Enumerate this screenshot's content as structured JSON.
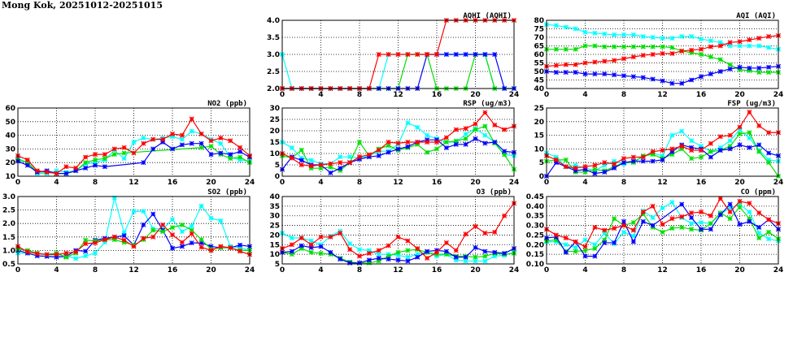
{
  "title": "Mong Kok, 20251012-20251015",
  "series_colors": {
    "red": "#ff0000",
    "green": "#00e000",
    "blue": "#0000ff",
    "cyan": "#00ffff"
  },
  "chart_data": [
    {
      "id": "aqhi",
      "type": "line",
      "title": "AQHI (AQHI)",
      "ylim": [
        2,
        4
      ],
      "yticks": [
        "2.0",
        "2.5",
        "3.0",
        "3.5",
        "4.0"
      ],
      "xlim": [
        0,
        24
      ],
      "xticks": [
        "0",
        "4",
        "8",
        "12",
        "16",
        "20",
        "24"
      ],
      "grid": true,
      "series": [
        {
          "name": "cyan",
          "values": [
            3,
            2,
            2,
            2,
            2,
            2,
            2,
            2,
            2,
            2,
            2,
            3,
            3,
            3,
            3,
            3,
            3,
            3,
            3,
            3,
            3,
            3,
            2,
            2,
            2
          ]
        },
        {
          "name": "green",
          "values": [
            2,
            2,
            2,
            2,
            2,
            2,
            2,
            2,
            2,
            2,
            2,
            2,
            2,
            3,
            3,
            3,
            2,
            2,
            2,
            2,
            3,
            3,
            2,
            null,
            null
          ]
        },
        {
          "name": "blue",
          "values": [
            2,
            2,
            2,
            2,
            2,
            2,
            2,
            2,
            2,
            2,
            2,
            2,
            2,
            2,
            2,
            3,
            3,
            3,
            3,
            3,
            3,
            3,
            3,
            2,
            2
          ]
        },
        {
          "name": "red",
          "values": [
            2,
            2,
            2,
            2,
            2,
            2,
            2,
            2,
            2,
            2,
            3,
            3,
            3,
            3,
            3,
            3,
            3,
            4,
            4,
            4,
            4,
            4,
            4,
            4,
            4
          ]
        }
      ]
    },
    {
      "id": "aqi",
      "type": "line",
      "title": "AQI (AQI)",
      "ylim": [
        40,
        80
      ],
      "yticks": [
        "40",
        "45",
        "50",
        "55",
        "60",
        "65",
        "70",
        "75",
        "80"
      ],
      "xlim": [
        0,
        24
      ],
      "xticks": [
        "0",
        "4",
        "8",
        "12",
        "16",
        "20",
        "24"
      ],
      "grid": true,
      "series": [
        {
          "name": "cyan",
          "values": [
            77.5,
            77,
            76,
            75,
            73,
            72.5,
            72,
            71.5,
            71.5,
            71.5,
            70.5,
            70,
            69.5,
            69.5,
            70.5,
            70.5,
            69,
            68,
            67,
            65,
            65,
            65,
            65,
            64,
            63
          ]
        },
        {
          "name": "green",
          "values": [
            63,
            63,
            63,
            63,
            65,
            65,
            64.5,
            64.5,
            64.5,
            64.5,
            64.5,
            64.5,
            64.5,
            64,
            62,
            61,
            60,
            58.5,
            57,
            54,
            51,
            50.5,
            49.5,
            49.5,
            49.5
          ]
        },
        {
          "name": "red",
          "values": [
            53,
            53.5,
            54,
            54,
            55,
            55.5,
            56,
            56.5,
            57.5,
            58.5,
            59.5,
            60,
            60.5,
            60.5,
            62,
            62.5,
            63,
            64.5,
            65,
            67,
            67.5,
            68.5,
            69.5,
            70.5,
            71
          ]
        },
        {
          "name": "blue",
          "values": [
            50,
            49.5,
            49.5,
            49.5,
            48.5,
            48.5,
            48.5,
            48,
            47.5,
            47,
            46.5,
            45.5,
            44.5,
            43,
            43,
            45,
            47,
            48.5,
            50,
            51.5,
            52.5,
            52,
            52,
            52.5,
            53
          ]
        }
      ]
    },
    {
      "id": "no2",
      "type": "line",
      "title": "NO2 (ppb)",
      "ylim": [
        10,
        60
      ],
      "yticks": [
        "10",
        "20",
        "30",
        "40",
        "50",
        "60"
      ],
      "xlim": [
        0,
        24
      ],
      "xticks": [
        "0",
        "4",
        "8",
        "12",
        "16",
        "20",
        "24"
      ],
      "grid": true,
      "series": [
        {
          "name": "cyan",
          "values": [
            23,
            20,
            12,
            12,
            14,
            13,
            14,
            19,
            20,
            22,
            29,
            23,
            35,
            38,
            37,
            38,
            39,
            37,
            43,
            41,
            37,
            34,
            24,
            22,
            21
          ]
        },
        {
          "name": "green",
          "values": [
            22,
            20,
            13,
            13,
            12,
            12,
            14,
            20,
            22,
            23,
            26,
            27,
            null,
            null,
            null,
            null,
            null,
            null,
            null,
            31,
            32,
            26,
            23,
            24,
            20
          ]
        },
        {
          "name": "blue",
          "values": [
            21,
            18,
            13,
            14,
            12,
            12,
            14,
            16,
            18,
            17,
            null,
            null,
            null,
            20,
            30,
            35,
            30,
            33,
            34,
            34,
            26,
            27,
            26,
            28,
            24
          ]
        },
        {
          "name": "red",
          "values": [
            25,
            22,
            14,
            13,
            12,
            17,
            16,
            24,
            26,
            26,
            30,
            31,
            27,
            34,
            37,
            37,
            41,
            40,
            52,
            41,
            36,
            38,
            36,
            31,
            25
          ]
        }
      ]
    },
    {
      "id": "rsp",
      "type": "line",
      "title": "RSP (ug/m3)",
      "ylim": [
        0,
        30
      ],
      "yticks": [
        "0",
        "5",
        "10",
        "15",
        "20",
        "25",
        "30"
      ],
      "xlim": [
        0,
        24
      ],
      "xticks": [
        "0",
        "4",
        "8",
        "12",
        "16",
        "20",
        "24"
      ],
      "grid": true,
      "series": [
        {
          "name": "cyan",
          "values": [
            15,
            12.5,
            8,
            7,
            5.5,
            5.5,
            8.5,
            8.5,
            8,
            9,
            11,
            11,
            14,
            23.5,
            21.5,
            18,
            16.5,
            15,
            15,
            18.5,
            21,
            18,
            15,
            9.5,
            9
          ]
        },
        {
          "name": "green",
          "values": [
            9,
            8,
            11.5,
            3.5,
            3.5,
            4,
            2.5,
            6,
            15,
            9,
            12,
            13.5,
            11.5,
            12.5,
            14,
            10.5,
            12,
            15,
            15.5,
            16.5,
            20.5,
            22,
            14.5,
            9.5,
            3
          ]
        },
        {
          "name": "blue",
          "values": [
            3,
            8.5,
            7,
            5,
            5,
            1.5,
            3.5,
            6,
            7.5,
            8.5,
            9,
            10.5,
            12,
            13,
            15,
            16,
            16,
            12.5,
            14,
            14,
            16.5,
            14.5,
            15,
            11,
            10.5
          ]
        },
        {
          "name": "red",
          "values": [
            10,
            8,
            5,
            4.5,
            5,
            5.5,
            6,
            6,
            8.5,
            9.5,
            11.5,
            15,
            14.5,
            15,
            15,
            15,
            15,
            17,
            20.5,
            21,
            23,
            28,
            22.5,
            20.5,
            22
          ]
        }
      ]
    },
    {
      "id": "fsp",
      "type": "line",
      "title": "FSP (ug/m3)",
      "ylim": [
        0,
        25
      ],
      "yticks": [
        "0",
        "5",
        "10",
        "15",
        "20",
        "25"
      ],
      "xlim": [
        0,
        24
      ],
      "xticks": [
        "0",
        "4",
        "8",
        "12",
        "16",
        "20",
        "24"
      ],
      "grid": true,
      "series": [
        {
          "name": "cyan",
          "values": [
            8.5,
            7,
            3.5,
            4,
            3,
            2,
            4,
            5.5,
            4.5,
            5.5,
            7,
            8.5,
            7.5,
            15,
            16.5,
            13,
            11,
            9,
            10.5,
            13,
            17,
            14,
            9.5,
            6,
            5.5
          ]
        },
        {
          "name": "green",
          "values": [
            5.5,
            6,
            6,
            1.5,
            1.5,
            2.5,
            2,
            3.5,
            5,
            5,
            7.5,
            8,
            6.5,
            8,
            10,
            6.5,
            7,
            9,
            9.5,
            11,
            15.5,
            16,
            9,
            5,
            0
          ]
        },
        {
          "name": "blue",
          "values": [
            0,
            5,
            3.5,
            2,
            2.5,
            1,
            1.5,
            3,
            5,
            5.5,
            5.5,
            5.5,
            6,
            9,
            11.5,
            10.5,
            10,
            7,
            9.5,
            10,
            11.5,
            10.5,
            11.5,
            8.5,
            7.5
          ]
        },
        {
          "name": "red",
          "values": [
            7.5,
            6,
            3.5,
            3,
            3.5,
            4,
            5,
            4.5,
            6.5,
            7,
            7,
            9,
            9.5,
            10,
            11,
            9.5,
            9.5,
            12,
            14.5,
            15,
            18,
            23.5,
            18.5,
            16,
            16
          ]
        }
      ]
    },
    {
      "id": "so2",
      "type": "line",
      "title": "SO2 (ppb)",
      "ylim": [
        0.5,
        3
      ],
      "yticks": [
        "0.5",
        "1.0",
        "1.5",
        "2.0",
        "2.5",
        "3.0"
      ],
      "xlim": [
        0,
        24
      ],
      "xticks": [
        "0",
        "4",
        "8",
        "12",
        "16",
        "20",
        "24"
      ],
      "grid": true,
      "series": [
        {
          "name": "cyan",
          "values": [
            0.9,
            0.9,
            0.8,
            0.8,
            0.8,
            0.8,
            0.7,
            0.8,
            0.9,
            1.3,
            2.95,
            1.65,
            2.45,
            2.45,
            1.8,
            1.8,
            2.15,
            1.7,
            1.9,
            2.65,
            2.2,
            2.1,
            1.15,
            1.1,
            1.0
          ]
        },
        {
          "name": "blue",
          "values": [
            1.0,
            0.9,
            0.8,
            0.78,
            0.75,
            0.78,
            1.0,
            0.97,
            1.38,
            1.45,
            1.5,
            1.55,
            1.2,
            1.95,
            2.35,
            1.75,
            1.08,
            1.15,
            1.28,
            1.28,
            1.15,
            1.1,
            1.1,
            1.2,
            1.15
          ]
        },
        {
          "name": "green",
          "values": [
            1.05,
            1.0,
            0.9,
            0.85,
            0.9,
            0.75,
            0.9,
            1.38,
            1.35,
            1.4,
            1.4,
            1.3,
            1.2,
            1.4,
            1.75,
            1.7,
            1.85,
            1.95,
            1.75,
            1.4,
            1.05,
            1.1,
            1.1,
            1.0,
            1.0
          ]
        },
        {
          "name": "red",
          "values": [
            1.15,
            0.95,
            0.88,
            0.85,
            0.85,
            0.9,
            0.95,
            1.25,
            1.28,
            1.4,
            1.5,
            1.38,
            1.15,
            1.45,
            1.5,
            1.95,
            1.58,
            1.3,
            1.62,
            1.12,
            1.0,
            1.15,
            1.1,
            0.97,
            0.85
          ]
        }
      ]
    },
    {
      "id": "o3",
      "type": "line",
      "title": "O3 (ppb)",
      "ylim": [
        5,
        40
      ],
      "yticks": [
        "5",
        "10",
        "15",
        "20",
        "25",
        "30",
        "35",
        "40"
      ],
      "xlim": [
        0,
        24
      ],
      "xticks": [
        "0",
        "4",
        "8",
        "12",
        "16",
        "20",
        "24"
      ],
      "grid": true,
      "series": [
        {
          "name": "cyan",
          "values": [
            21,
            18.5,
            18.5,
            17,
            15,
            19.5,
            22,
            15.5,
            12.5,
            12,
            10,
            10,
            9.5,
            8.5,
            10,
            11,
            9,
            10,
            7,
            6.5,
            6.5,
            6.5,
            9,
            9.5,
            11
          ]
        },
        {
          "name": "green",
          "values": [
            11,
            10,
            13,
            11,
            10.5,
            10,
            8,
            6,
            5.5,
            5.5,
            6.5,
            9,
            11,
            12,
            12.5,
            11,
            10,
            10,
            9,
            9,
            8.5,
            9,
            10.5,
            10,
            10.5
          ]
        },
        {
          "name": "blue",
          "values": [
            11,
            11.5,
            14.5,
            13.5,
            14,
            11,
            7.5,
            5.5,
            5.5,
            7,
            8,
            7.5,
            7,
            6.5,
            8.5,
            11.5,
            12,
            11.5,
            8.5,
            8.5,
            13.5,
            11.5,
            11,
            10.5,
            13
          ]
        },
        {
          "name": "red",
          "values": [
            13,
            15,
            18.5,
            15,
            19,
            19,
            21,
            12.5,
            9,
            10.5,
            12,
            14.5,
            19,
            17,
            13,
            8,
            11,
            16,
            12,
            20.5,
            24.5,
            21,
            21.5,
            30,
            36.5
          ]
        }
      ]
    },
    {
      "id": "co",
      "type": "line",
      "title": "CO (ppm)",
      "ylim": [
        0.1,
        0.45
      ],
      "yticks": [
        "0.10",
        "0.15",
        "0.20",
        "0.25",
        "0.30",
        "0.35",
        "0.40",
        "0.45"
      ],
      "xlim": [
        0,
        24
      ],
      "xticks": [
        "0",
        "4",
        "8",
        "12",
        "16",
        "20",
        "24"
      ],
      "grid": true,
      "series": [
        {
          "name": "cyan",
          "values": [
            0.215,
            0.215,
            0.2,
            0.185,
            0.225,
            0.2,
            0.26,
            0.205,
            0.265,
            0.245,
            0.375,
            0.34,
            0.39,
            0.42,
            0.34,
            0.31,
            0.315,
            0.31,
            0.36,
            0.39,
            0.41,
            0.37,
            0.26,
            0.23,
            0.22
          ]
        },
        {
          "name": "green",
          "values": [
            0.22,
            0.225,
            0.165,
            0.165,
            0.17,
            0.18,
            0.225,
            0.335,
            0.3,
            0.315,
            0.36,
            0.29,
            0.265,
            0.285,
            0.29,
            0.28,
            0.275,
            0.31,
            0.365,
            0.335,
            0.395,
            0.335,
            0.235,
            0.265,
            0.23
          ]
        },
        {
          "name": "blue",
          "values": [
            0.235,
            0.24,
            0.16,
            0.215,
            0.14,
            0.14,
            0.21,
            0.21,
            0.32,
            0.215,
            0.32,
            0.3,
            null,
            null,
            0.41,
            0.34,
            0.28,
            0.28,
            0.355,
            0.41,
            0.305,
            0.32,
            0.29,
            0.33,
            0.28
          ]
        },
        {
          "name": "red",
          "values": [
            0.28,
            0.25,
            0.235,
            0.215,
            0.19,
            0.29,
            0.275,
            0.285,
            0.3,
            0.275,
            0.37,
            0.4,
            0.305,
            0.335,
            0.345,
            0.365,
            0.37,
            0.35,
            0.44,
            0.37,
            0.425,
            0.415,
            0.365,
            0.33,
            0.31
          ]
        }
      ]
    }
  ]
}
